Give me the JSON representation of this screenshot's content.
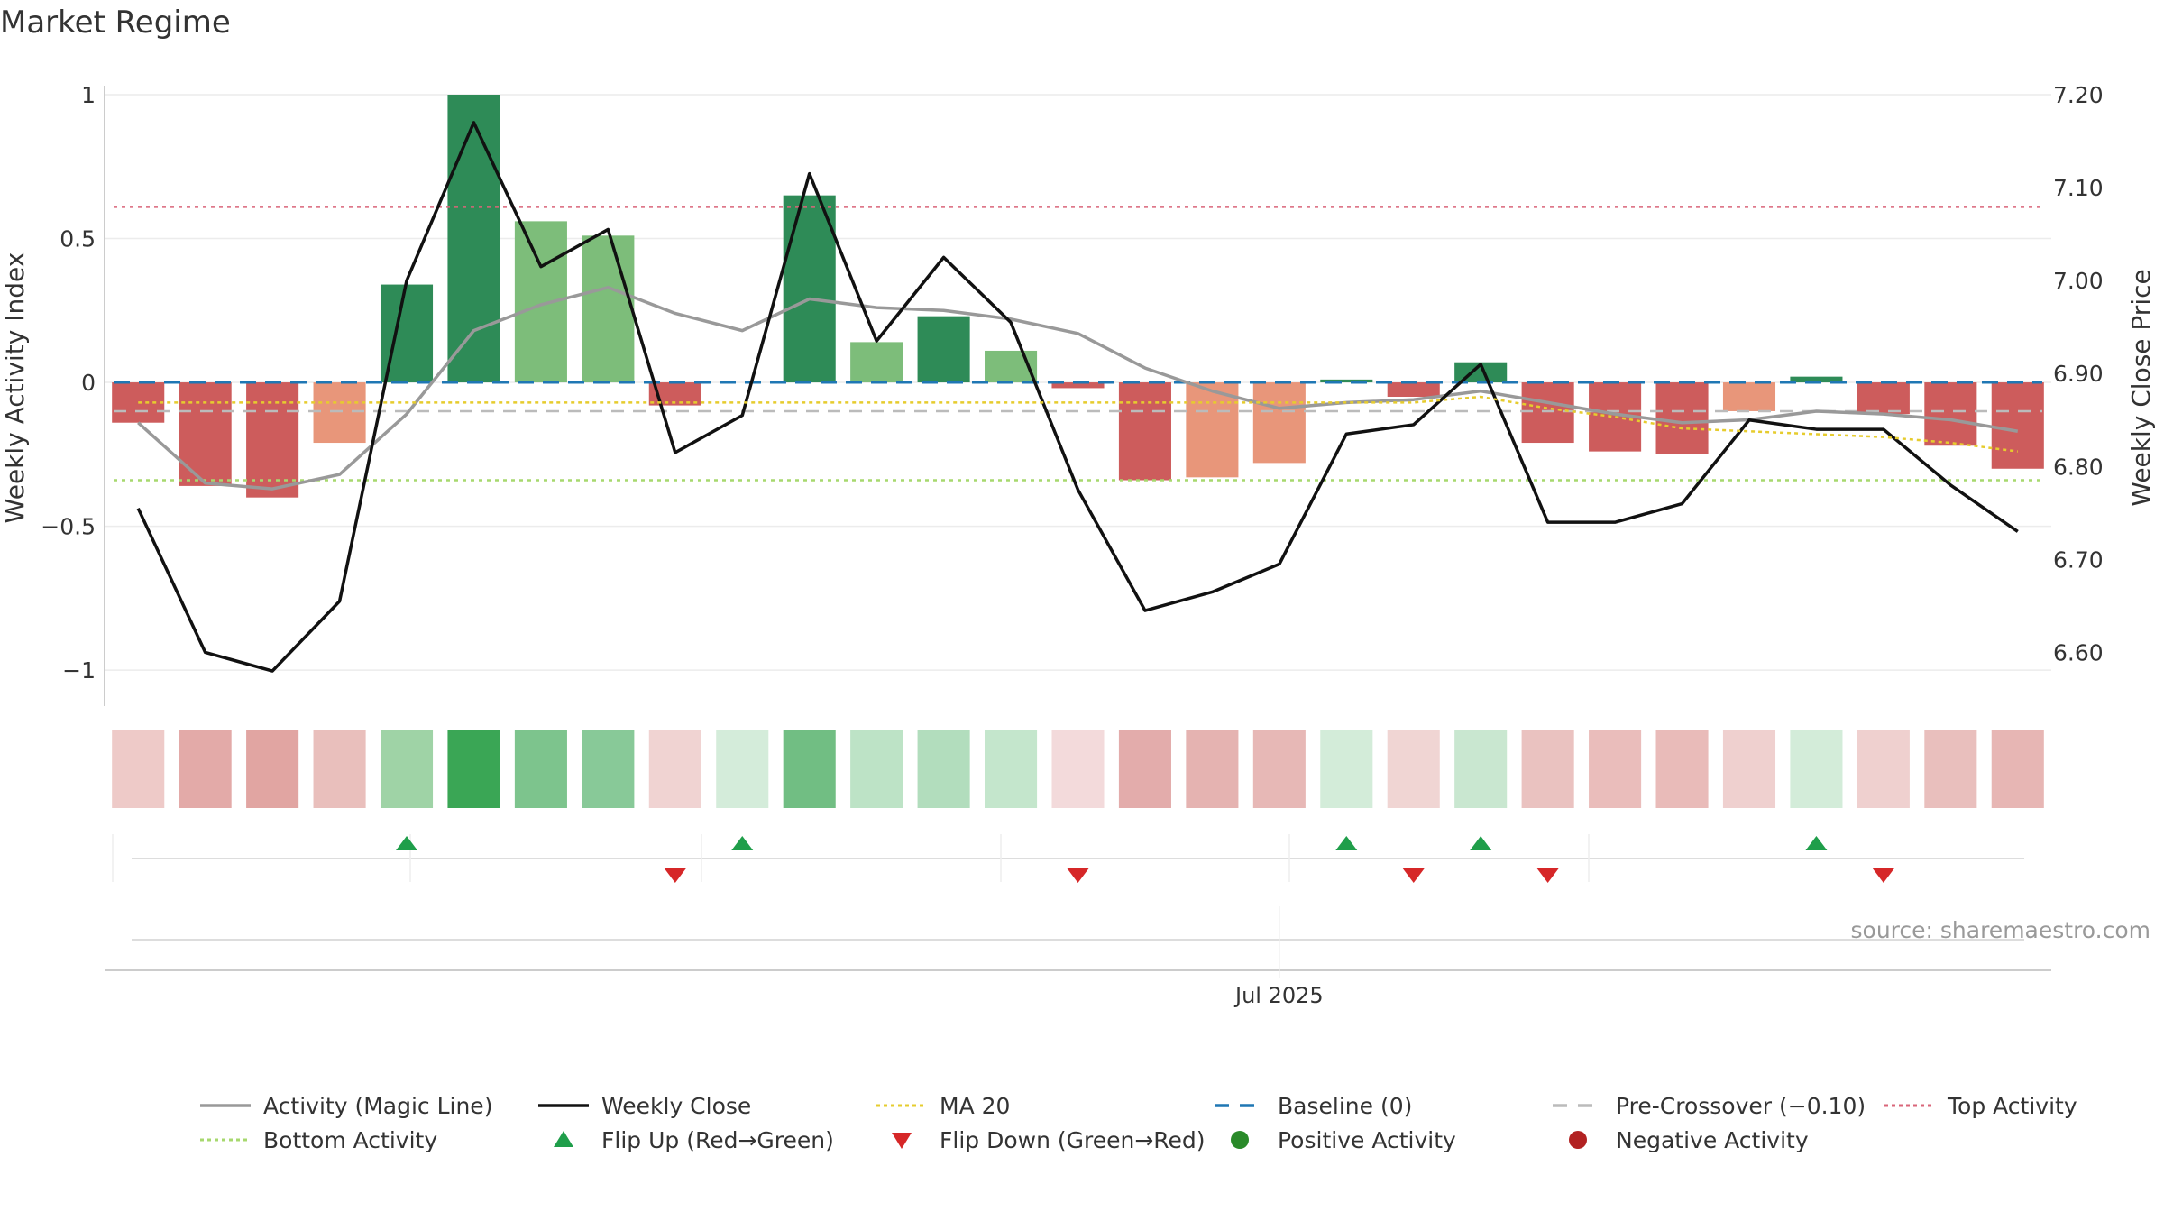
{
  "chart_data": {
    "type": "bar",
    "title": "Market Regime",
    "ylabel": "Weekly Activity Index",
    "ylabel_right": "Weekly Close Price",
    "ylim": [
      -1.1,
      1.0
    ],
    "ylim_right": [
      6.55,
      7.2
    ],
    "yticks": [
      1,
      0.5,
      0,
      -0.5,
      -1
    ],
    "yticks_right": [
      7.2,
      7.1,
      7.0,
      6.9,
      6.8,
      6.7,
      6.6
    ],
    "x_tick_label": "Jul 2025",
    "x_tick_week": 17.5,
    "grid": true,
    "legend_position": "bottom",
    "source": "source: sharemaestro.com",
    "weeks": 29,
    "series": [
      {
        "name": "Weekly Activity Index",
        "kind": "bar",
        "values": [
          -0.14,
          -0.36,
          -0.4,
          -0.21,
          0.34,
          1.0,
          0.56,
          0.51,
          -0.08,
          0.0,
          0.65,
          0.14,
          0.23,
          0.11,
          -0.02,
          -0.34,
          -0.33,
          -0.28,
          0.01,
          -0.05,
          0.07,
          -0.21,
          -0.24,
          -0.25,
          -0.1,
          0.02,
          -0.11,
          -0.22,
          -0.3
        ],
        "colors": [
          "#cd5c5c",
          "#cd5c5c",
          "#cd5c5c",
          "#e8967a",
          "#2e8b57",
          "#2e8b57",
          "#7dbd7a",
          "#7dbd7a",
          "#cd5c5c",
          "#7dbd7a",
          "#2e8b57",
          "#7dbd7a",
          "#2e8b57",
          "#7dbd7a",
          "#cd5c5c",
          "#cd5c5c",
          "#e8967a",
          "#e8967a",
          "#2e8b57",
          "#cd5c5c",
          "#2e8b57",
          "#cd5c5c",
          "#cd5c5c",
          "#cd5c5c",
          "#e8967a",
          "#2e8b57",
          "#cd5c5c",
          "#cd5c5c",
          "#cd5c5c"
        ]
      },
      {
        "name": "Activity (Magic Line)",
        "kind": "line",
        "color": "#999999",
        "values": [
          -0.14,
          -0.35,
          -0.37,
          -0.32,
          -0.11,
          0.18,
          0.27,
          0.33,
          0.24,
          0.18,
          0.29,
          0.26,
          0.25,
          0.22,
          0.17,
          0.05,
          -0.03,
          -0.09,
          -0.07,
          -0.06,
          -0.03,
          -0.07,
          -0.11,
          -0.14,
          -0.13,
          -0.1,
          -0.11,
          -0.13,
          -0.17
        ]
      },
      {
        "name": "Weekly Close",
        "kind": "line",
        "axis": "right",
        "color": "#111111",
        "values": [
          6.755,
          6.6,
          6.58,
          6.655,
          7.0,
          7.17,
          7.015,
          7.055,
          6.815,
          6.855,
          7.115,
          6.935,
          7.025,
          6.955,
          6.775,
          6.645,
          6.665,
          6.695,
          6.835,
          6.845,
          6.91,
          6.74,
          6.74,
          6.76,
          6.85,
          6.84,
          6.84,
          6.78,
          6.73
        ]
      },
      {
        "name": "MA 20",
        "kind": "line",
        "color": "#e6cc2e",
        "values": [
          -0.07,
          -0.07,
          -0.07,
          -0.07,
          -0.07,
          -0.07,
          -0.07,
          -0.07,
          -0.07,
          -0.07,
          -0.07,
          -0.07,
          -0.07,
          -0.07,
          -0.07,
          -0.07,
          -0.07,
          -0.07,
          -0.07,
          -0.07,
          -0.05,
          -0.09,
          -0.12,
          -0.16,
          -0.17,
          -0.18,
          -0.19,
          -0.21,
          -0.24
        ]
      },
      {
        "name": "Baseline (0)",
        "kind": "hline",
        "value": 0,
        "color": "#1f77b4"
      },
      {
        "name": "Pre-Crossover (−0.10)",
        "kind": "hline",
        "value": -0.1,
        "color": "#bbbbbb"
      },
      {
        "name": "Top Activity",
        "kind": "hline",
        "value": 0.61,
        "color": "#d9667a"
      },
      {
        "name": "Bottom Activity",
        "kind": "hline",
        "value": -0.34,
        "color": "#a7d86e"
      }
    ],
    "heat_strip": {
      "colors": [
        "#eecac8",
        "#e3aaa8",
        "#e1a5a2",
        "#e9bfbc",
        "#9fd3a6",
        "#3aa655",
        "#7dc48d",
        "#88c998",
        "#f0d3d2",
        "#d4ecda",
        "#71be83",
        "#bde3c6",
        "#b2ddbd",
        "#c4e6cc",
        "#f3dadb",
        "#e3acab",
        "#e5b3b1",
        "#e7b8b6",
        "#d3ecd9",
        "#f0d5d3",
        "#c9e7d0",
        "#eac2c0",
        "#eabdbb",
        "#e9bbb9",
        "#efd0cf",
        "#d3ecd9",
        "#efd0cf",
        "#e9bfbd",
        "#e7b6b4"
      ]
    },
    "flip_up_weeks": [
      4.5,
      9.5,
      18.5,
      20.5,
      25.5
    ],
    "flip_down_weeks": [
      8.5,
      14.5,
      19.5,
      21.5,
      26.5
    ],
    "flip_up_color": "#1f9e4a",
    "flip_down_color": "#d62728",
    "legend": [
      {
        "label": "Activity (Magic Line)",
        "symbol": "line",
        "color": "#999999"
      },
      {
        "label": "Weekly Close",
        "symbol": "line",
        "color": "#111111"
      },
      {
        "label": "MA 20",
        "symbol": "dotted",
        "color": "#e6cc2e"
      },
      {
        "label": "Baseline (0)",
        "symbol": "dashed",
        "color": "#1f77b4"
      },
      {
        "label": "Pre-Crossover (−0.10)",
        "symbol": "dashed",
        "color": "#bbbbbb"
      },
      {
        "label": "Top Activity",
        "symbol": "dotted",
        "color": "#d9667a"
      },
      {
        "label": "Bottom Activity",
        "symbol": "dotted",
        "color": "#a7d86e"
      },
      {
        "label": "Flip Up (Red→Green)",
        "symbol": "triangle-up",
        "color": "#1f9e4a"
      },
      {
        "label": "Flip Down (Green→Red)",
        "symbol": "triangle-down",
        "color": "#d62728"
      },
      {
        "label": "Positive Activity",
        "symbol": "circle",
        "color": "#2a8a2a"
      },
      {
        "label": "Negative Activity",
        "symbol": "circle",
        "color": "#b22222"
      }
    ]
  }
}
